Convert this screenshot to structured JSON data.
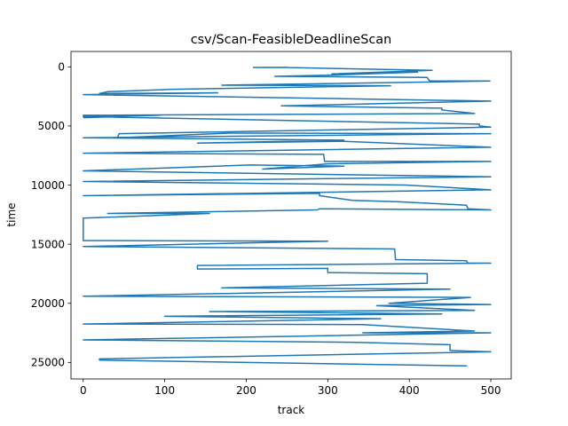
{
  "chart_data": {
    "type": "line",
    "title": "csv/Scan-FeasibleDeadlineScan",
    "xlabel": "track",
    "ylabel": "time",
    "xlim": [
      -15,
      525
    ],
    "ylim": [
      26400,
      -1300
    ],
    "y_inverted": true,
    "grid": false,
    "legend": "none",
    "x_ticks": [
      0,
      100,
      200,
      300,
      400,
      500
    ],
    "y_ticks": [
      0,
      5000,
      10000,
      15000,
      20000,
      25000
    ],
    "x_tick_labels": [
      "0",
      "100",
      "200",
      "300",
      "400",
      "500"
    ],
    "y_tick_labels": [
      "0",
      "5000",
      "10000",
      "15000",
      "20000",
      "25000"
    ],
    "series": [
      {
        "color": "#1f77b4",
        "x": [
          209,
          249,
          253,
          428,
          305,
          410,
          307,
          235,
          422,
          425,
          499,
          170,
          377,
          110,
          30,
          20,
          165,
          0,
          500,
          243,
          440,
          440,
          480,
          0,
          1,
          95,
          0,
          486,
          486,
          500,
          44,
          42,
          180,
          500,
          0,
          320,
          140,
          320,
          500,
          0,
          295,
          296,
          500,
          300,
          220,
          320,
          205,
          0,
          500,
          0,
          395,
          500,
          0,
          290,
          290,
          330,
          385,
          470,
          472,
          500,
          290,
          287,
          30,
          155,
          0,
          0,
          300,
          0,
          382,
          383,
          470,
          472,
          500,
          140,
          140,
          300,
          300,
          422,
          422,
          170,
          450,
          0,
          475,
          375,
          500,
          360,
          480,
          155,
          440,
          100,
          365,
          0,
          343,
          480,
          343,
          500,
          0,
          335,
          450,
          450,
          500,
          20,
          20,
          470
        ],
        "y": [
          50,
          40,
          60,
          300,
          600,
          450,
          700,
          800,
          900,
          1200,
          1200,
          1550,
          1600,
          1900,
          2100,
          2250,
          2200,
          2350,
          2900,
          3300,
          3500,
          3650,
          3950,
          4100,
          4300,
          4100,
          4200,
          4850,
          5000,
          5100,
          5650,
          6000,
          5600,
          5650,
          6000,
          6200,
          6450,
          6300,
          6800,
          7300,
          7400,
          8000,
          8000,
          8200,
          8650,
          8400,
          8300,
          8800,
          9300,
          9700,
          10000,
          10400,
          10900,
          10700,
          10900,
          11300,
          11400,
          11700,
          12000,
          12100,
          12000,
          12100,
          12400,
          12400,
          12800,
          14700,
          14750,
          15200,
          15400,
          16300,
          16400,
          16600,
          16600,
          16800,
          17100,
          17050,
          17400,
          17500,
          18300,
          18700,
          18800,
          19400,
          19500,
          20000,
          20100,
          20200,
          20600,
          20700,
          20900,
          21100,
          21300,
          21750,
          21800,
          22350,
          22500,
          22500,
          23100,
          23300,
          23500,
          24000,
          24100,
          24700,
          24800,
          25300
        ]
      }
    ]
  }
}
